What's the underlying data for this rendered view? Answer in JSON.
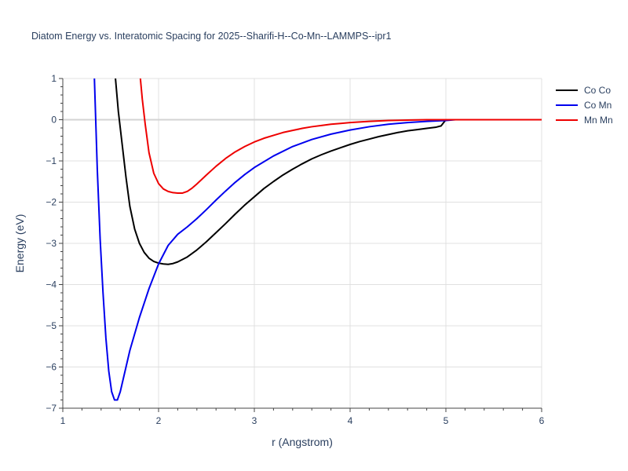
{
  "chart_data": {
    "type": "line",
    "title": "Diatom Energy vs. Interatomic Spacing for 2025--Sharifi-H--Co-Mn--LAMMPS--ipr1",
    "xlabel": "r (Angstrom)",
    "ylabel": "Energy (eV)",
    "xlim": [
      1,
      6
    ],
    "ylim": [
      -7,
      1
    ],
    "xticks": [
      "1",
      "2",
      "3",
      "4",
      "5",
      "6"
    ],
    "yticks": [
      "1",
      "0",
      "−1",
      "−2",
      "−3",
      "−4",
      "−5",
      "−6",
      "−7"
    ],
    "grid": true,
    "legend_position": "top-right",
    "series": [
      {
        "name": "Co Co",
        "color": "#000000",
        "x": [
          1.55,
          1.58,
          1.62,
          1.66,
          1.7,
          1.75,
          1.8,
          1.85,
          1.9,
          1.95,
          2.0,
          2.05,
          2.1,
          2.15,
          2.2,
          2.3,
          2.4,
          2.5,
          2.6,
          2.7,
          2.8,
          2.9,
          3.0,
          3.1,
          3.2,
          3.3,
          3.4,
          3.5,
          3.6,
          3.7,
          3.8,
          3.9,
          4.0,
          4.1,
          4.2,
          4.3,
          4.4,
          4.5,
          4.6,
          4.7,
          4.8,
          4.9,
          4.95,
          5.0,
          5.1,
          5.5,
          6.0
        ],
        "y": [
          1.0,
          0.2,
          -0.6,
          -1.4,
          -2.1,
          -2.65,
          -3.0,
          -3.22,
          -3.36,
          -3.44,
          -3.48,
          -3.5,
          -3.51,
          -3.49,
          -3.45,
          -3.33,
          -3.16,
          -2.96,
          -2.74,
          -2.52,
          -2.29,
          -2.07,
          -1.87,
          -1.67,
          -1.5,
          -1.34,
          -1.2,
          -1.07,
          -0.95,
          -0.85,
          -0.76,
          -0.68,
          -0.6,
          -0.53,
          -0.47,
          -0.41,
          -0.36,
          -0.31,
          -0.27,
          -0.24,
          -0.21,
          -0.18,
          -0.15,
          0.0,
          0.0,
          0.0,
          0.0
        ]
      },
      {
        "name": "Co Mn",
        "color": "#0000ee",
        "x": [
          1.33,
          1.36,
          1.39,
          1.42,
          1.45,
          1.48,
          1.51,
          1.54,
          1.57,
          1.6,
          1.64,
          1.7,
          1.8,
          1.9,
          2.0,
          2.1,
          2.2,
          2.3,
          2.4,
          2.5,
          2.6,
          2.7,
          2.8,
          2.9,
          3.0,
          3.2,
          3.4,
          3.6,
          3.8,
          4.0,
          4.2,
          4.4,
          4.6,
          4.8,
          5.0,
          5.1,
          5.5,
          6.0
        ],
        "y": [
          1.0,
          -1.2,
          -2.9,
          -4.2,
          -5.3,
          -6.1,
          -6.6,
          -6.8,
          -6.8,
          -6.6,
          -6.2,
          -5.6,
          -4.8,
          -4.1,
          -3.5,
          -3.05,
          -2.78,
          -2.6,
          -2.4,
          -2.18,
          -1.95,
          -1.73,
          -1.52,
          -1.33,
          -1.16,
          -0.88,
          -0.65,
          -0.48,
          -0.35,
          -0.25,
          -0.17,
          -0.11,
          -0.07,
          -0.04,
          -0.02,
          0.0,
          0.0,
          0.0
        ]
      },
      {
        "name": "Mn Mn",
        "color": "#ee0000",
        "x": [
          1.81,
          1.83,
          1.86,
          1.9,
          1.95,
          2.0,
          2.05,
          2.1,
          2.15,
          2.2,
          2.25,
          2.3,
          2.35,
          2.4,
          2.5,
          2.6,
          2.7,
          2.8,
          2.9,
          3.0,
          3.1,
          3.2,
          3.3,
          3.4,
          3.5,
          3.6,
          3.7,
          3.8,
          3.9,
          4.0,
          4.2,
          4.4,
          4.6,
          4.8,
          5.0,
          5.5,
          6.0
        ],
        "y": [
          1.0,
          0.5,
          -0.1,
          -0.8,
          -1.3,
          -1.55,
          -1.68,
          -1.74,
          -1.77,
          -1.78,
          -1.78,
          -1.74,
          -1.66,
          -1.56,
          -1.34,
          -1.13,
          -0.94,
          -0.78,
          -0.65,
          -0.54,
          -0.45,
          -0.38,
          -0.31,
          -0.26,
          -0.21,
          -0.17,
          -0.14,
          -0.11,
          -0.09,
          -0.07,
          -0.04,
          -0.02,
          -0.01,
          0.0,
          0.0,
          0.0,
          0.0
        ]
      }
    ]
  }
}
